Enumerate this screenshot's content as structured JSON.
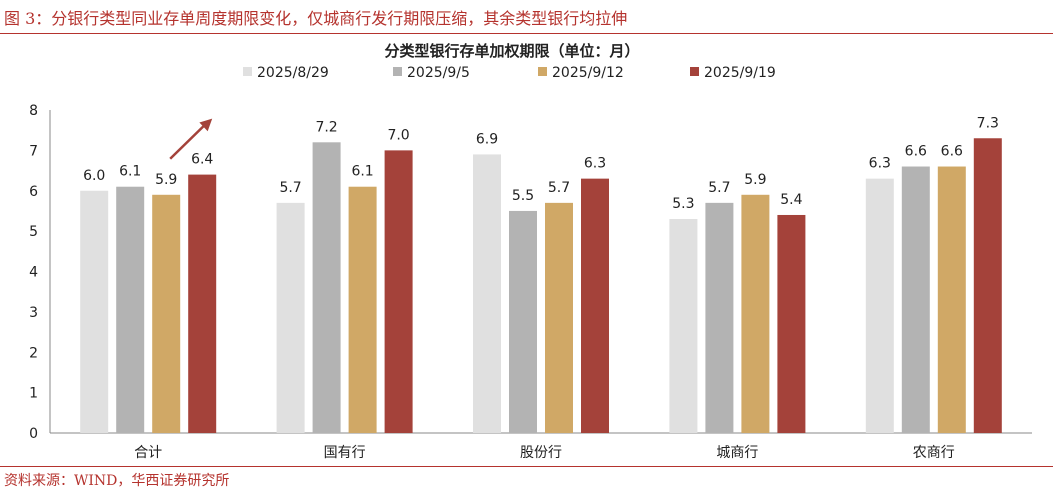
{
  "figure": {
    "title": "图 3：分银行类型同业存单周度期限变化，仅城商行发行期限压缩，其余类型银行均拉伸",
    "source": "资料来源：WIND，华西证券研究所"
  },
  "chart_data": {
    "type": "bar",
    "title": "分类型银行存单加权期限（单位：月）",
    "categories": [
      "合计",
      "国有行",
      "股份行",
      "城商行",
      "农商行"
    ],
    "series": [
      {
        "name": "2025/8/29",
        "color": "#e0e0e0",
        "values": [
          6.0,
          5.7,
          6.9,
          5.3,
          6.3
        ]
      },
      {
        "name": "2025/9/5",
        "color": "#b3b3b3",
        "values": [
          6.1,
          7.2,
          5.5,
          5.7,
          6.6
        ]
      },
      {
        "name": "2025/9/12",
        "color": "#d0a866",
        "values": [
          5.9,
          6.1,
          5.7,
          5.9,
          6.6
        ]
      },
      {
        "name": "2025/9/19",
        "color": "#a4423a",
        "values": [
          6.4,
          7.0,
          6.3,
          5.4,
          7.3
        ]
      }
    ],
    "ylim": [
      0,
      8
    ],
    "yticks": [
      0,
      1,
      2,
      3,
      4,
      5,
      6,
      7,
      8
    ],
    "xlabel": "",
    "ylabel": "",
    "grid": false,
    "legend_position": "top",
    "annotation": {
      "type": "arrow",
      "category": "合计",
      "color": "#a4423a"
    }
  }
}
